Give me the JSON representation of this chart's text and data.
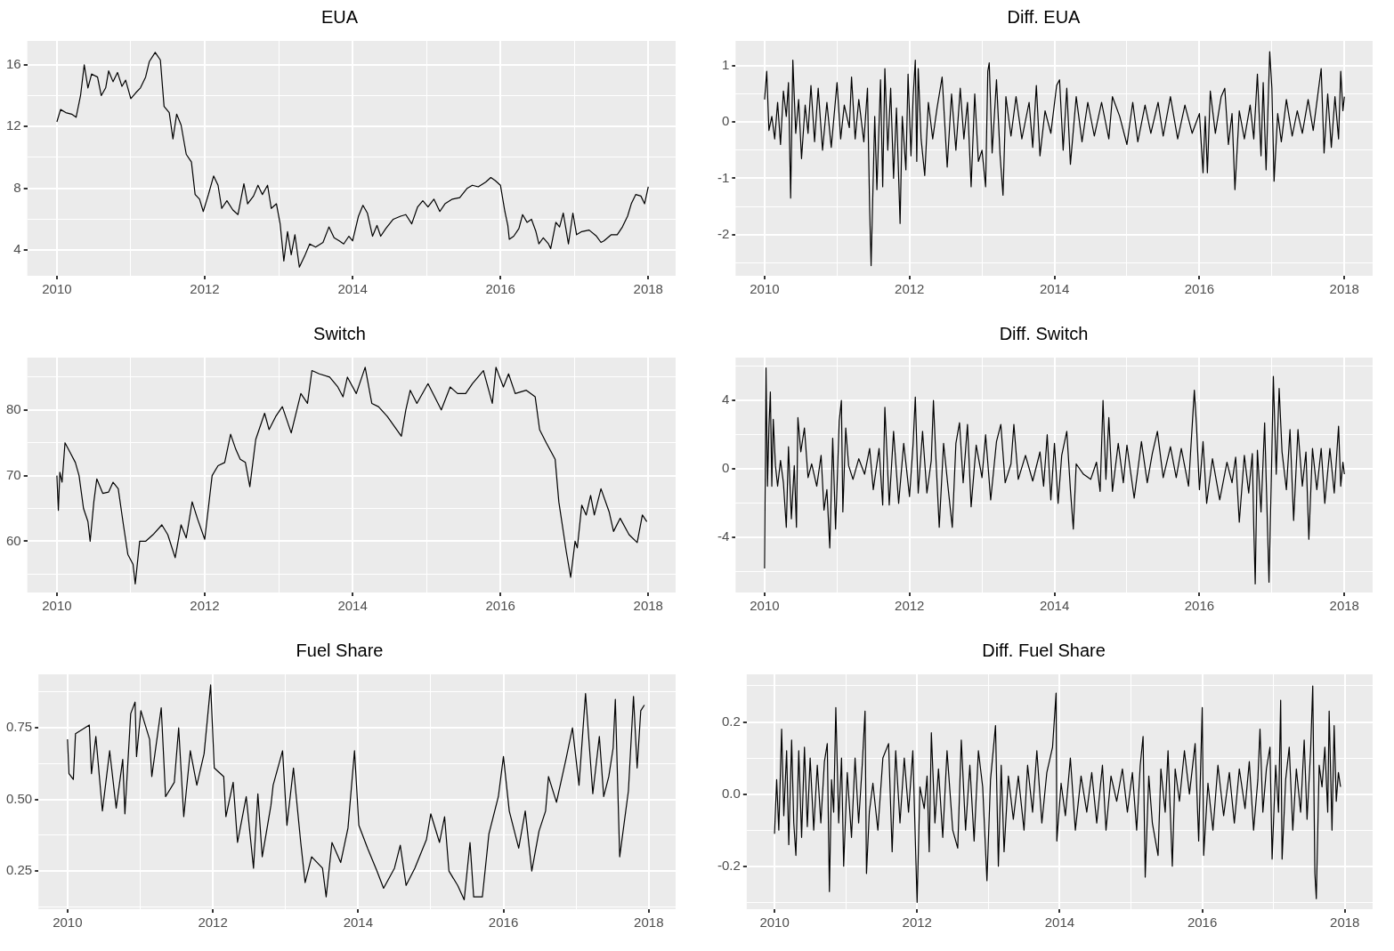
{
  "chart_data": [
    {
      "type": "line",
      "title": "EUA",
      "color": "#000000",
      "grid": true,
      "x": [
        2010.0,
        2010.05,
        2010.12,
        2010.2,
        2010.26,
        2010.32,
        2010.37,
        2010.42,
        2010.47,
        2010.55,
        2010.6,
        2010.66,
        2010.7,
        2010.76,
        2010.82,
        2010.88,
        2010.93,
        2011.0,
        2011.07,
        2011.13,
        2011.2,
        2011.25,
        2011.33,
        2011.4,
        2011.45,
        2011.52,
        2011.57,
        2011.62,
        2011.68,
        2011.75,
        2011.82,
        2011.87,
        2011.93,
        2011.98,
        2012.05,
        2012.12,
        2012.18,
        2012.23,
        2012.3,
        2012.38,
        2012.45,
        2012.53,
        2012.58,
        2012.66,
        2012.72,
        2012.78,
        2012.85,
        2012.9,
        2012.97,
        2013.02,
        2013.07,
        2013.12,
        2013.17,
        2013.22,
        2013.28,
        2013.35,
        2013.42,
        2013.5,
        2013.6,
        2013.68,
        2013.75,
        2013.82,
        2013.88,
        2013.95,
        2014.0,
        2014.08,
        2014.14,
        2014.2,
        2014.27,
        2014.33,
        2014.38,
        2014.45,
        2014.55,
        2014.65,
        2014.72,
        2014.8,
        2014.88,
        2014.95,
        2015.02,
        2015.1,
        2015.18,
        2015.25,
        2015.35,
        2015.45,
        2015.55,
        2015.62,
        2015.7,
        2015.8,
        2015.87,
        2015.93,
        2016.0,
        2016.06,
        2016.1,
        2016.12,
        2016.18,
        2016.25,
        2016.3,
        2016.36,
        2016.42,
        2016.48,
        2016.52,
        2016.58,
        2016.65,
        2016.68,
        2016.75,
        2016.8,
        2016.85,
        2016.92,
        2016.98,
        2017.03,
        2017.1,
        2017.2,
        2017.3,
        2017.36,
        2017.4,
        2017.5,
        2017.58,
        2017.65,
        2017.72,
        2017.77,
        2017.83,
        2017.9,
        2017.95,
        2018.0
      ],
      "values": [
        12.3,
        13.1,
        12.9,
        12.8,
        12.6,
        14.0,
        16.0,
        14.5,
        15.4,
        15.2,
        14.0,
        14.5,
        15.6,
        14.9,
        15.5,
        14.6,
        15.0,
        13.8,
        14.2,
        14.5,
        15.2,
        16.2,
        16.8,
        16.3,
        13.3,
        12.9,
        11.2,
        12.8,
        12.1,
        10.2,
        9.7,
        7.6,
        7.3,
        6.5,
        7.6,
        8.8,
        8.2,
        6.7,
        7.2,
        6.6,
        6.3,
        8.3,
        7.0,
        7.5,
        8.2,
        7.6,
        8.2,
        6.7,
        7.0,
        5.7,
        3.3,
        5.2,
        3.7,
        5.0,
        2.9,
        3.6,
        4.4,
        4.2,
        4.5,
        5.5,
        4.8,
        4.6,
        4.4,
        4.9,
        4.6,
        6.2,
        6.9,
        6.4,
        4.9,
        5.6,
        4.9,
        5.4,
        6.0,
        6.2,
        6.3,
        5.7,
        6.8,
        7.2,
        6.8,
        7.3,
        6.5,
        7.0,
        7.3,
        7.4,
        8.0,
        8.2,
        8.1,
        8.4,
        8.7,
        8.5,
        8.2,
        6.5,
        5.6,
        4.7,
        4.9,
        5.4,
        6.3,
        5.8,
        6.0,
        5.2,
        4.4,
        4.8,
        4.4,
        4.1,
        5.8,
        5.5,
        6.4,
        4.4,
        6.4,
        5.0,
        5.2,
        5.3,
        4.9,
        4.5,
        4.6,
        5.0,
        5.0,
        5.5,
        6.2,
        7.0,
        7.6,
        7.5,
        7.0,
        8.1
      ],
      "xlim": [
        2009.6,
        2018.37
      ],
      "xticks": [
        2010,
        {
          "value": 2011,
          "label": null
        },
        2012,
        {
          "value": 2013,
          "label": null
        },
        2014,
        {
          "value": 2015,
          "label": null
        },
        2016,
        {
          "value": 2017,
          "label": null
        },
        2018
      ],
      "ylim": [
        2.34,
        17.54
      ],
      "yticks": [
        4,
        {
          "value": 6,
          "label": null
        },
        8,
        {
          "value": 10,
          "label": null
        },
        12,
        {
          "value": 14,
          "label": null
        },
        16
      ]
    },
    {
      "type": "line",
      "title": "Diff. EUA",
      "color": "#000000",
      "grid": true,
      "x": [
        2010.0,
        2010.03,
        2010.06,
        2010.1,
        2010.14,
        2010.18,
        2010.22,
        2010.26,
        2010.3,
        2010.33,
        2010.36,
        2010.39,
        2010.43,
        2010.47,
        2010.51,
        2010.56,
        2010.6,
        2010.64,
        2010.69,
        2010.74,
        2010.8,
        2010.86,
        2010.92,
        2011.0,
        2011.05,
        2011.1,
        2011.17,
        2011.2,
        2011.25,
        2011.3,
        2011.37,
        2011.42,
        2011.45,
        2011.47,
        2011.52,
        2011.55,
        2011.6,
        2011.63,
        2011.66,
        2011.7,
        2011.74,
        2011.78,
        2011.82,
        2011.87,
        2011.9,
        2011.95,
        2011.98,
        2012.02,
        2012.05,
        2012.08,
        2012.1,
        2012.12,
        2012.16,
        2012.21,
        2012.26,
        2012.32,
        2012.38,
        2012.45,
        2012.52,
        2012.58,
        2012.64,
        2012.7,
        2012.75,
        2012.8,
        2012.85,
        2012.9,
        2012.95,
        2013.0,
        2013.05,
        2013.08,
        2013.1,
        2013.14,
        2013.2,
        2013.25,
        2013.29,
        2013.33,
        2013.4,
        2013.47,
        2013.55,
        2013.65,
        2013.7,
        2013.75,
        2013.8,
        2013.87,
        2013.95,
        2014.03,
        2014.07,
        2014.12,
        2014.17,
        2014.22,
        2014.3,
        2014.38,
        2014.46,
        2014.55,
        2014.65,
        2014.75,
        2014.8,
        2014.9,
        2015.0,
        2015.08,
        2015.15,
        2015.25,
        2015.33,
        2015.43,
        2015.5,
        2015.6,
        2015.7,
        2015.8,
        2015.9,
        2016.0,
        2016.05,
        2016.08,
        2016.11,
        2016.15,
        2016.22,
        2016.3,
        2016.35,
        2016.4,
        2016.45,
        2016.49,
        2016.55,
        2016.62,
        2016.7,
        2016.75,
        2016.8,
        2016.85,
        2016.88,
        2016.92,
        2016.97,
        2017.0,
        2017.03,
        2017.08,
        2017.13,
        2017.2,
        2017.28,
        2017.35,
        2017.42,
        2017.5,
        2017.57,
        2017.63,
        2017.68,
        2017.72,
        2017.77,
        2017.82,
        2017.87,
        2017.92,
        2017.95,
        2017.98,
        2018.0
      ],
      "values": [
        0.4,
        0.9,
        -0.15,
        0.1,
        -0.3,
        0.35,
        -0.4,
        0.55,
        0.1,
        0.7,
        -1.35,
        1.1,
        -0.2,
        0.4,
        -0.65,
        0.3,
        -0.2,
        0.65,
        -0.35,
        0.6,
        -0.5,
        0.35,
        -0.45,
        0.7,
        -0.3,
        0.3,
        -0.1,
        0.8,
        -0.3,
        0.4,
        -0.35,
        0.6,
        -1.55,
        -2.55,
        0.1,
        -1.2,
        0.75,
        -1.15,
        0.95,
        -0.5,
        0.6,
        -1.0,
        0.25,
        -1.8,
        0.1,
        -0.85,
        0.85,
        -0.6,
        0.45,
        1.1,
        -0.7,
        0.95,
        -0.3,
        -0.95,
        0.35,
        -0.3,
        0.25,
        0.8,
        -0.8,
        0.5,
        -0.5,
        0.6,
        -0.3,
        0.35,
        -1.15,
        0.5,
        -0.7,
        -0.5,
        -1.15,
        0.9,
        1.05,
        -0.55,
        0.75,
        -0.6,
        -1.3,
        0.45,
        -0.25,
        0.45,
        -0.3,
        0.35,
        -0.45,
        0.65,
        -0.6,
        0.2,
        -0.2,
        0.65,
        0.75,
        -0.5,
        0.6,
        -0.75,
        0.45,
        -0.35,
        0.35,
        -0.25,
        0.35,
        -0.3,
        0.45,
        0.1,
        -0.4,
        0.35,
        -0.35,
        0.3,
        -0.2,
        0.35,
        -0.25,
        0.45,
        -0.3,
        0.3,
        -0.2,
        0.15,
        -0.9,
        0.1,
        -0.9,
        0.55,
        -0.2,
        0.45,
        0.6,
        -0.4,
        0.15,
        -1.2,
        0.2,
        -0.3,
        0.3,
        -0.3,
        0.85,
        -0.6,
        0.7,
        -0.85,
        1.25,
        0.6,
        -1.05,
        0.15,
        -0.35,
        0.4,
        -0.25,
        0.2,
        -0.2,
        0.4,
        -0.15,
        0.45,
        0.95,
        -0.55,
        0.5,
        -0.45,
        0.45,
        -0.3,
        0.9,
        0.2,
        0.45
      ],
      "xlim": [
        2009.6,
        2018.39
      ],
      "xticks": [
        2010,
        {
          "value": 2011,
          "label": null
        },
        2012,
        {
          "value": 2013,
          "label": null
        },
        2014,
        {
          "value": 2015,
          "label": null
        },
        2016,
        {
          "value": 2017,
          "label": null
        },
        2018
      ],
      "ylim": [
        -2.73,
        1.44
      ],
      "yticks": [
        {
          "value": -2.5,
          "label": null
        },
        -2,
        {
          "value": -1.5,
          "label": null
        },
        -1,
        {
          "value": -0.5,
          "label": null
        },
        0,
        {
          "value": 0.5,
          "label": null
        },
        1
      ]
    },
    {
      "type": "line",
      "title": "Switch",
      "color": "#000000",
      "grid": true,
      "x": [
        2010.0,
        2010.02,
        2010.04,
        2010.07,
        2010.11,
        2010.18,
        2010.25,
        2010.3,
        2010.36,
        2010.42,
        2010.45,
        2010.5,
        2010.54,
        2010.62,
        2010.7,
        2010.76,
        2010.83,
        2010.9,
        2010.96,
        2011.03,
        2011.06,
        2011.12,
        2011.2,
        2011.3,
        2011.42,
        2011.5,
        2011.6,
        2011.68,
        2011.75,
        2011.83,
        2011.9,
        2012.0,
        2012.1,
        2012.18,
        2012.27,
        2012.35,
        2012.42,
        2012.48,
        2012.55,
        2012.61,
        2012.69,
        2012.81,
        2012.87,
        2012.96,
        2013.05,
        2013.17,
        2013.3,
        2013.39,
        2013.45,
        2013.55,
        2013.69,
        2013.8,
        2013.87,
        2013.93,
        2014.05,
        2014.17,
        2014.26,
        2014.35,
        2014.47,
        2014.66,
        2014.72,
        2014.78,
        2014.87,
        2015.02,
        2015.2,
        2015.32,
        2015.42,
        2015.53,
        2015.62,
        2015.77,
        2015.89,
        2015.94,
        2016.04,
        2016.11,
        2016.2,
        2016.35,
        2016.47,
        2016.53,
        2016.62,
        2016.74,
        2016.79,
        2016.89,
        2016.95,
        2017.01,
        2017.04,
        2017.1,
        2017.16,
        2017.22,
        2017.27,
        2017.36,
        2017.47,
        2017.53,
        2017.62,
        2017.74,
        2017.85,
        2017.92,
        2017.98
      ],
      "values": [
        70.0,
        64.7,
        70.5,
        69.0,
        75.0,
        73.5,
        72.0,
        70.0,
        65.0,
        63.0,
        60.0,
        66.0,
        69.5,
        67.3,
        67.5,
        69.0,
        68.0,
        62.5,
        58.0,
        56.5,
        53.5,
        60.0,
        60.0,
        61.0,
        62.5,
        61.0,
        57.5,
        62.5,
        60.5,
        66.0,
        63.5,
        60.3,
        70.0,
        71.5,
        72.0,
        76.3,
        74.0,
        72.5,
        72.0,
        68.3,
        75.5,
        79.5,
        77.0,
        79.0,
        80.5,
        76.5,
        82.5,
        81.0,
        86.0,
        85.5,
        85.0,
        83.5,
        82.0,
        85.0,
        82.5,
        86.5,
        81.0,
        80.5,
        79.0,
        76.0,
        80.0,
        83.0,
        81.0,
        84.0,
        80.0,
        83.5,
        82.5,
        82.5,
        84.0,
        86.0,
        81.0,
        86.5,
        83.5,
        85.5,
        82.5,
        83.0,
        82.0,
        77.0,
        75.0,
        72.5,
        66.0,
        58.5,
        54.5,
        60.0,
        59.0,
        65.5,
        64.0,
        67.0,
        64.0,
        68.0,
        64.5,
        61.5,
        63.5,
        61.0,
        59.8,
        64.0,
        63.0
      ],
      "xlim": [
        2009.6,
        2018.37
      ],
      "xticks": [
        2010,
        {
          "value": 2011,
          "label": null
        },
        2012,
        {
          "value": 2013,
          "label": null
        },
        2014,
        {
          "value": 2015,
          "label": null
        },
        2016,
        {
          "value": 2017,
          "label": null
        },
        2018
      ],
      "ylim": [
        52.2,
        87.97
      ],
      "yticks": [
        {
          "value": 55,
          "label": null
        },
        60,
        {
          "value": 65,
          "label": null
        },
        70,
        {
          "value": 75,
          "label": null
        },
        80,
        {
          "value": 85,
          "label": null
        }
      ]
    },
    {
      "type": "line",
      "title": "Diff. Switch",
      "color": "#000000",
      "grid": true,
      "x": [
        2010.0,
        2010.02,
        2010.04,
        2010.06,
        2010.08,
        2010.1,
        2010.12,
        2010.15,
        2010.18,
        2010.22,
        2010.26,
        2010.3,
        2010.33,
        2010.37,
        2010.41,
        2010.44,
        2010.46,
        2010.5,
        2010.55,
        2010.6,
        2010.65,
        2010.72,
        2010.78,
        2010.82,
        2010.86,
        2010.9,
        2010.94,
        2010.98,
        2011.03,
        2011.06,
        2011.08,
        2011.12,
        2011.16,
        2011.22,
        2011.3,
        2011.38,
        2011.45,
        2011.5,
        2011.58,
        2011.63,
        2011.66,
        2011.72,
        2011.78,
        2011.85,
        2011.92,
        2012.0,
        2012.05,
        2012.08,
        2012.12,
        2012.18,
        2012.24,
        2012.3,
        2012.33,
        2012.36,
        2012.41,
        2012.47,
        2012.53,
        2012.59,
        2012.64,
        2012.69,
        2012.74,
        2012.8,
        2012.85,
        2012.92,
        2013.0,
        2013.05,
        2013.12,
        2013.2,
        2013.26,
        2013.32,
        2013.4,
        2013.44,
        2013.5,
        2013.6,
        2013.7,
        2013.8,
        2013.85,
        2013.9,
        2013.95,
        2014.0,
        2014.05,
        2014.1,
        2014.17,
        2014.22,
        2014.26,
        2014.3,
        2014.4,
        2014.5,
        2014.58,
        2014.63,
        2014.67,
        2014.71,
        2014.75,
        2014.8,
        2014.88,
        2014.95,
        2015.0,
        2015.1,
        2015.2,
        2015.28,
        2015.35,
        2015.42,
        2015.5,
        2015.6,
        2015.68,
        2015.75,
        2015.85,
        2015.93,
        2015.96,
        2016.0,
        2016.05,
        2016.1,
        2016.18,
        2016.28,
        2016.38,
        2016.45,
        2016.5,
        2016.55,
        2016.62,
        2016.68,
        2016.73,
        2016.75,
        2016.77,
        2016.8,
        2016.85,
        2016.9,
        2016.96,
        2016.99,
        2017.02,
        2017.06,
        2017.1,
        2017.14,
        2017.2,
        2017.25,
        2017.3,
        2017.36,
        2017.42,
        2017.47,
        2017.51,
        2017.56,
        2017.62,
        2017.68,
        2017.73,
        2017.8,
        2017.86,
        2017.92,
        2017.95,
        2017.98,
        2018.0
      ],
      "values": [
        -5.8,
        5.9,
        -1.0,
        2.4,
        4.5,
        -1.0,
        2.9,
        0.2,
        -1.0,
        0.5,
        -0.8,
        -3.4,
        1.3,
        -2.9,
        0.2,
        -3.4,
        3.0,
        1.0,
        2.4,
        -0.5,
        0.3,
        -1.0,
        0.8,
        -2.4,
        -1.2,
        -4.6,
        1.8,
        -3.5,
        2.8,
        4.0,
        -2.5,
        2.4,
        0.2,
        -0.6,
        0.6,
        -0.3,
        1.2,
        -1.2,
        1.2,
        -2.1,
        3.6,
        -2.1,
        2.2,
        -2.0,
        1.5,
        -1.6,
        1.5,
        4.2,
        -1.4,
        2.2,
        -1.4,
        0.5,
        4.0,
        1.0,
        -3.4,
        1.5,
        -1.0,
        -3.4,
        1.5,
        2.7,
        -0.8,
        2.6,
        -2.2,
        1.4,
        -0.5,
        2.0,
        -1.8,
        1.6,
        2.6,
        -0.8,
        0.3,
        2.6,
        -0.6,
        0.8,
        -0.7,
        1.0,
        -1.0,
        2.0,
        -1.8,
        1.5,
        -2.0,
        0.8,
        2.2,
        -1.2,
        -3.5,
        0.3,
        -0.3,
        -0.6,
        0.4,
        -1.3,
        4.0,
        -0.6,
        3.0,
        -1.3,
        1.5,
        -0.8,
        1.4,
        -1.7,
        1.6,
        -0.8,
        0.9,
        2.2,
        -0.5,
        1.3,
        -0.5,
        1.2,
        -1.0,
        4.6,
        2.5,
        -1.2,
        1.6,
        -2.0,
        0.6,
        -1.8,
        0.4,
        -0.8,
        0.7,
        -3.1,
        0.8,
        -1.4,
        0.9,
        -3.4,
        -6.7,
        1.1,
        -2.5,
        2.7,
        -6.6,
        -1.0,
        5.4,
        -0.3,
        4.7,
        1.0,
        -1.2,
        2.3,
        -3.0,
        2.3,
        -1.0,
        1.0,
        -4.1,
        1.2,
        -1.2,
        1.2,
        -2.0,
        1.2,
        -1.4,
        2.5,
        -1.0,
        0.4,
        -0.3
      ],
      "xlim": [
        2009.6,
        2018.39
      ],
      "xticks": [
        2010,
        {
          "value": 2011,
          "label": null
        },
        2012,
        {
          "value": 2013,
          "label": null
        },
        2014,
        {
          "value": 2015,
          "label": null
        },
        2016,
        {
          "value": 2017,
          "label": null
        },
        2018
      ],
      "ylim": [
        -7.2,
        6.5
      ],
      "yticks": [
        {
          "value": -6,
          "label": null
        },
        -4,
        {
          "value": -2,
          "label": null
        },
        0,
        {
          "value": 2,
          "label": null
        },
        4,
        {
          "value": 6,
          "label": null
        }
      ]
    },
    {
      "type": "line",
      "title": "Fuel Share",
      "color": "#000000",
      "grid": true,
      "x": [
        2010.0,
        2010.02,
        2010.08,
        2010.11,
        2010.3,
        2010.33,
        2010.39,
        2010.48,
        2010.58,
        2010.67,
        2010.76,
        2010.79,
        2010.87,
        2010.93,
        2010.95,
        2011.01,
        2011.13,
        2011.16,
        2011.29,
        2011.35,
        2011.47,
        2011.53,
        2011.6,
        2011.69,
        2011.78,
        2011.88,
        2011.97,
        2012.02,
        2012.15,
        2012.18,
        2012.28,
        2012.34,
        2012.46,
        2012.56,
        2012.62,
        2012.68,
        2012.8,
        2012.83,
        2012.96,
        2013.02,
        2013.11,
        2013.21,
        2013.27,
        2013.36,
        2013.51,
        2013.56,
        2013.64,
        2013.76,
        2013.86,
        2013.95,
        2014.01,
        2014.13,
        2014.26,
        2014.35,
        2014.5,
        2014.58,
        2014.66,
        2014.78,
        2014.94,
        2015.0,
        2015.12,
        2015.19,
        2015.25,
        2015.37,
        2015.46,
        2015.54,
        2015.59,
        2015.71,
        2015.8,
        2015.93,
        2016.0,
        2016.08,
        2016.21,
        2016.3,
        2016.39,
        2016.49,
        2016.58,
        2016.62,
        2016.73,
        2016.86,
        2016.95,
        2017.04,
        2017.13,
        2017.23,
        2017.32,
        2017.38,
        2017.45,
        2017.51,
        2017.54,
        2017.6,
        2017.72,
        2017.79,
        2017.84,
        2017.89,
        2017.94
      ],
      "values": [
        0.71,
        0.59,
        0.57,
        0.73,
        0.76,
        0.59,
        0.72,
        0.46,
        0.67,
        0.47,
        0.64,
        0.45,
        0.8,
        0.84,
        0.65,
        0.81,
        0.71,
        0.58,
        0.82,
        0.51,
        0.56,
        0.75,
        0.44,
        0.67,
        0.55,
        0.66,
        0.9,
        0.61,
        0.58,
        0.44,
        0.56,
        0.35,
        0.51,
        0.26,
        0.52,
        0.3,
        0.48,
        0.55,
        0.67,
        0.41,
        0.61,
        0.35,
        0.21,
        0.3,
        0.26,
        0.16,
        0.35,
        0.28,
        0.4,
        0.67,
        0.41,
        0.33,
        0.25,
        0.19,
        0.26,
        0.34,
        0.2,
        0.26,
        0.36,
        0.45,
        0.35,
        0.44,
        0.25,
        0.2,
        0.15,
        0.35,
        0.16,
        0.16,
        0.38,
        0.51,
        0.65,
        0.46,
        0.33,
        0.46,
        0.25,
        0.39,
        0.46,
        0.58,
        0.49,
        0.64,
        0.75,
        0.55,
        0.87,
        0.52,
        0.72,
        0.51,
        0.58,
        0.68,
        0.85,
        0.3,
        0.53,
        0.86,
        0.61,
        0.81,
        0.83
      ],
      "xlim": [
        2009.6,
        2018.37
      ],
      "xticks": [
        2010,
        {
          "value": 2011,
          "label": null
        },
        2012,
        {
          "value": 2013,
          "label": null
        },
        2014,
        {
          "value": 2015,
          "label": null
        },
        2016,
        {
          "value": 2017,
          "label": null
        },
        2018
      ],
      "ylim": [
        0.117,
        0.937
      ],
      "yticks": [
        {
          "value": 0.125,
          "label": null
        },
        0.25,
        {
          "value": 0.375,
          "label": null
        },
        {
          "value": 0.5,
          "label": "0.50"
        },
        {
          "value": 0.625,
          "label": null
        },
        0.75,
        {
          "value": 0.875,
          "label": null
        }
      ]
    },
    {
      "type": "line",
      "title": "Diff. Fuel Share",
      "color": "#000000",
      "grid": true,
      "x": [
        2010.0,
        2010.03,
        2010.06,
        2010.1,
        2010.13,
        2010.17,
        2010.2,
        2010.24,
        2010.27,
        2010.3,
        2010.34,
        2010.38,
        2010.42,
        2010.46,
        2010.5,
        2010.55,
        2010.6,
        2010.65,
        2010.7,
        2010.74,
        2010.77,
        2010.8,
        2010.83,
        2010.86,
        2010.9,
        2010.94,
        2010.97,
        2011.02,
        2011.08,
        2011.13,
        2011.18,
        2011.23,
        2011.27,
        2011.29,
        2011.33,
        2011.38,
        2011.45,
        2011.52,
        2011.6,
        2011.65,
        2011.7,
        2011.76,
        2011.82,
        2011.88,
        2011.94,
        2012.0,
        2012.04,
        2012.1,
        2012.14,
        2012.17,
        2012.2,
        2012.25,
        2012.3,
        2012.36,
        2012.42,
        2012.5,
        2012.57,
        2012.62,
        2012.68,
        2012.74,
        2012.8,
        2012.86,
        2012.92,
        2012.98,
        2013.03,
        2013.1,
        2013.14,
        2013.18,
        2013.22,
        2013.28,
        2013.35,
        2013.42,
        2013.5,
        2013.55,
        2013.62,
        2013.68,
        2013.75,
        2013.82,
        2013.9,
        2013.95,
        2013.96,
        2014.02,
        2014.08,
        2014.15,
        2014.22,
        2014.3,
        2014.38,
        2014.45,
        2014.52,
        2014.6,
        2014.65,
        2014.72,
        2014.8,
        2014.88,
        2014.95,
        2015.02,
        2015.08,
        2015.13,
        2015.17,
        2015.2,
        2015.25,
        2015.3,
        2015.38,
        2015.42,
        2015.48,
        2015.52,
        2015.58,
        2015.62,
        2015.68,
        2015.75,
        2015.82,
        2015.9,
        2015.95,
        2016.0,
        2016.02,
        2016.08,
        2016.15,
        2016.22,
        2016.3,
        2016.38,
        2016.45,
        2016.52,
        2016.6,
        2016.66,
        2016.72,
        2016.78,
        2016.81,
        2016.85,
        2016.9,
        2016.95,
        2016.98,
        2017.03,
        2017.07,
        2017.1,
        2017.12,
        2017.17,
        2017.22,
        2017.27,
        2017.32,
        2017.38,
        2017.43,
        2017.47,
        2017.52,
        2017.55,
        2017.58,
        2017.6,
        2017.64,
        2017.68,
        2017.72,
        2017.76,
        2017.78,
        2017.82,
        2017.85,
        2017.88,
        2017.91,
        2017.94
      ],
      "values": [
        -0.11,
        0.04,
        -0.1,
        0.18,
        -0.06,
        0.12,
        -0.14,
        0.15,
        -0.08,
        -0.17,
        0.12,
        -0.12,
        0.13,
        -0.09,
        0.1,
        -0.1,
        0.08,
        -0.08,
        0.09,
        0.14,
        -0.27,
        0.04,
        -0.05,
        0.24,
        -0.08,
        0.1,
        -0.2,
        0.06,
        -0.12,
        0.1,
        -0.08,
        0.08,
        0.23,
        -0.22,
        -0.05,
        0.03,
        -0.1,
        0.1,
        0.14,
        -0.16,
        0.12,
        -0.08,
        0.1,
        -0.05,
        0.12,
        -0.3,
        0.02,
        -0.04,
        0.05,
        -0.16,
        0.17,
        -0.08,
        0.07,
        -0.12,
        0.12,
        -0.1,
        -0.15,
        0.15,
        -0.1,
        0.08,
        -0.13,
        0.12,
        0.02,
        -0.24,
        0.04,
        0.19,
        -0.2,
        0.08,
        -0.16,
        0.05,
        -0.07,
        0.05,
        -0.1,
        0.08,
        -0.05,
        0.12,
        -0.08,
        0.06,
        0.13,
        0.28,
        -0.13,
        0.03,
        -0.06,
        0.1,
        -0.1,
        0.05,
        -0.05,
        0.06,
        -0.08,
        0.08,
        -0.1,
        0.05,
        -0.02,
        0.07,
        -0.05,
        0.06,
        -0.1,
        0.08,
        0.16,
        -0.23,
        0.05,
        -0.08,
        -0.17,
        0.07,
        -0.05,
        0.12,
        -0.2,
        0.07,
        -0.02,
        0.12,
        0.0,
        0.14,
        -0.13,
        0.24,
        -0.17,
        0.03,
        -0.1,
        0.08,
        -0.06,
        0.06,
        -0.08,
        0.07,
        -0.04,
        0.09,
        -0.1,
        0.04,
        0.18,
        -0.05,
        0.07,
        0.13,
        -0.18,
        0.08,
        -0.05,
        0.26,
        -0.18,
        0.04,
        0.13,
        -0.1,
        0.07,
        -0.05,
        0.15,
        -0.07,
        0.12,
        0.3,
        -0.22,
        -0.29,
        0.08,
        0.02,
        0.13,
        -0.05,
        0.23,
        -0.1,
        0.19,
        -0.02,
        0.06,
        0.02
      ],
      "xlim": [
        2009.61,
        2018.39
      ],
      "xticks": [
        2010,
        {
          "value": 2011,
          "label": null
        },
        2012,
        {
          "value": 2013,
          "label": null
        },
        2014,
        {
          "value": 2015,
          "label": null
        },
        2016,
        {
          "value": 2017,
          "label": null
        },
        2018
      ],
      "ylim": [
        -0.319,
        0.332
      ],
      "yticks": [
        {
          "value": -0.3,
          "label": null
        },
        -0.2,
        {
          "value": -0.1,
          "label": null
        },
        {
          "value": 0,
          "label": "0.0"
        },
        {
          "value": 0.1,
          "label": null
        },
        0.2,
        {
          "value": 0.3,
          "label": null
        }
      ]
    }
  ]
}
